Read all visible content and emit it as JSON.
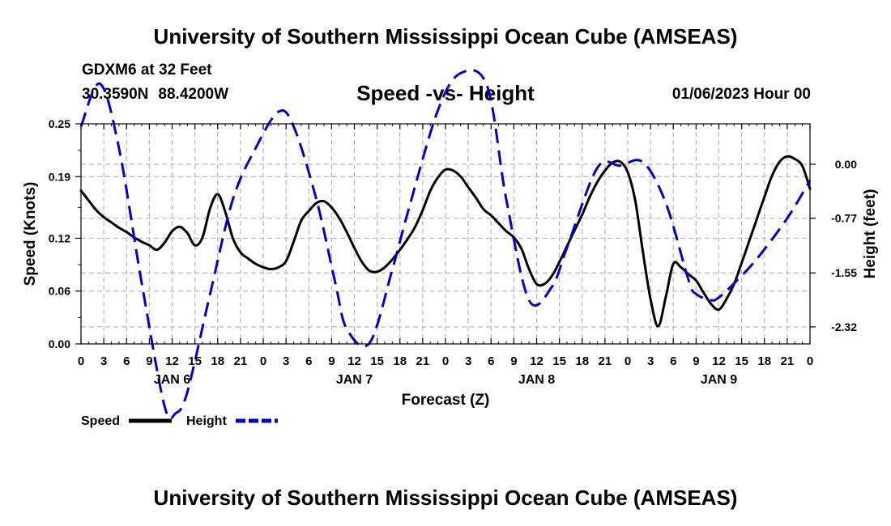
{
  "header": {
    "title": "University of Southern Mississippi Ocean Cube (AMSEAS)",
    "station": "GDXM6 at 32 Feet",
    "latitude": "30.3590N",
    "longitude": "88.4200W",
    "datetime": "01/06/2023 Hour 00"
  },
  "footer": {
    "title": "University of Southern Mississippi Ocean Cube (AMSEAS)"
  },
  "chart_data": {
    "type": "line",
    "title": "Speed -vs- Height",
    "xlabel": "Forecast (Z)",
    "ylabel": "Speed (Knots)",
    "y2label": "Height (feet)",
    "x_range_hours": [
      0,
      96
    ],
    "x_tick_labels": [
      "0",
      "3",
      "6",
      "9",
      "12",
      "15",
      "18",
      "21",
      "0",
      "3",
      "6",
      "9",
      "12",
      "15",
      "18",
      "21",
      "0",
      "3",
      "6",
      "9",
      "12",
      "15",
      "18",
      "21",
      "0",
      "3",
      "6",
      "9",
      "12",
      "15",
      "18",
      "21",
      "0"
    ],
    "day_labels": [
      {
        "label": "JAN 6",
        "hour": 12
      },
      {
        "label": "JAN 7",
        "hour": 36
      },
      {
        "label": "JAN 8",
        "hour": 60
      },
      {
        "label": "JAN 9",
        "hour": 84
      }
    ],
    "ylim": [
      0,
      0.25
    ],
    "y_ticks": [
      "0.00",
      "0.06",
      "0.12",
      "0.19",
      "0.25"
    ],
    "y2_ticks": [
      "0.00",
      "-0.77",
      "-1.55",
      "-2.32"
    ],
    "grid": true,
    "legend_placement": "bottom-left",
    "series": [
      {
        "name": "Speed",
        "axis": "left",
        "color": "#000000",
        "style": "solid",
        "x": [
          0,
          1,
          2,
          3,
          4,
          5,
          6,
          7,
          8,
          9,
          10,
          11,
          12,
          13,
          14,
          15,
          16,
          17,
          18,
          19,
          20,
          21,
          22,
          23,
          24,
          25,
          26,
          27,
          28,
          29,
          30,
          31,
          32,
          33,
          34,
          35,
          36,
          37,
          38,
          39,
          40,
          41,
          42,
          43,
          44,
          45,
          46,
          47,
          48,
          49,
          50,
          51,
          52,
          53,
          54,
          55,
          56,
          57,
          58,
          59,
          60,
          61,
          62,
          63,
          64,
          65,
          66,
          67,
          68,
          69,
          70,
          71,
          72,
          73,
          74,
          75,
          76,
          77,
          78,
          79,
          80,
          81,
          82,
          83,
          84,
          85,
          86,
          87,
          88,
          89,
          90,
          91,
          92,
          93,
          94,
          95,
          96
        ],
        "values": [
          0.174,
          0.163,
          0.152,
          0.144,
          0.138,
          0.132,
          0.127,
          0.121,
          0.116,
          0.112,
          0.107,
          0.115,
          0.128,
          0.133,
          0.126,
          0.112,
          0.121,
          0.154,
          0.17,
          0.15,
          0.12,
          0.104,
          0.097,
          0.091,
          0.087,
          0.085,
          0.087,
          0.094,
          0.116,
          0.14,
          0.151,
          0.16,
          0.162,
          0.155,
          0.143,
          0.127,
          0.109,
          0.093,
          0.083,
          0.082,
          0.087,
          0.096,
          0.107,
          0.119,
          0.133,
          0.152,
          0.174,
          0.189,
          0.198,
          0.197,
          0.19,
          0.178,
          0.166,
          0.153,
          0.146,
          0.137,
          0.128,
          0.121,
          0.108,
          0.085,
          0.068,
          0.068,
          0.077,
          0.093,
          0.111,
          0.129,
          0.147,
          0.167,
          0.184,
          0.197,
          0.206,
          0.207,
          0.195,
          0.162,
          0.104,
          0.051,
          0.02,
          0.053,
          0.091,
          0.087,
          0.079,
          0.072,
          0.058,
          0.045,
          0.039,
          0.051,
          0.068,
          0.092,
          0.117,
          0.142,
          0.167,
          0.191,
          0.207,
          0.213,
          0.21,
          0.202,
          0.176
        ]
      },
      {
        "name": "Height",
        "axis": "right",
        "color": "#0000cc",
        "style": "dashed",
        "x": [
          0,
          2.5,
          5,
          8,
          11,
          12.5,
          14,
          17,
          20,
          23,
          26,
          28,
          31,
          33.5,
          35,
          38,
          41,
          43,
          47,
          50,
          53.5,
          56,
          59,
          62,
          64,
          68,
          71,
          74,
          77,
          80,
          81,
          83,
          84,
          86,
          89,
          93,
          96
        ],
        "values": [
          0.54,
          1.15,
          0.23,
          -1.7,
          -3.45,
          -3.55,
          -3.25,
          -1.85,
          -0.5,
          0.23,
          0.75,
          0.54,
          -0.5,
          -1.7,
          -2.35,
          -2.55,
          -1.5,
          -0.7,
          0.77,
          1.3,
          1.11,
          -0.5,
          -1.94,
          -1.75,
          -1.19,
          -0.05,
          -0.02,
          0.03,
          -0.55,
          -1.65,
          -1.85,
          -1.94,
          -1.9,
          -1.7,
          -1.35,
          -0.77,
          -0.23
        ]
      }
    ]
  }
}
